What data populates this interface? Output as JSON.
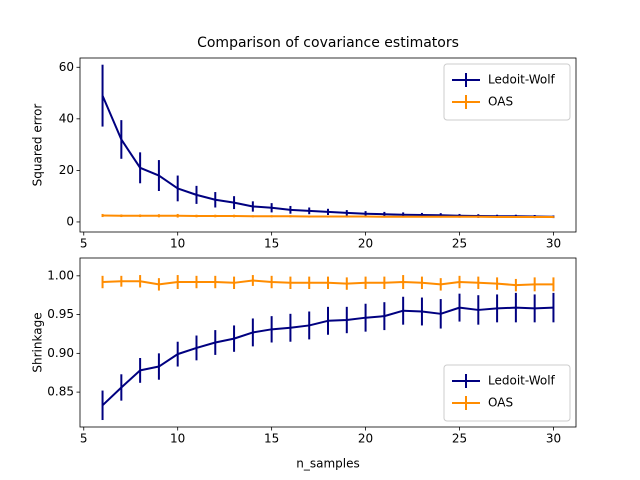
{
  "chart_data": [
    {
      "type": "errorbar_line",
      "title": "Comparison of covariance estimators",
      "ylabel": "Squared error",
      "x": [
        6,
        7,
        8,
        9,
        10,
        11,
        12,
        13,
        14,
        15,
        16,
        17,
        18,
        19,
        20,
        21,
        22,
        23,
        24,
        25,
        26,
        27,
        28,
        29,
        30
      ],
      "xlim": [
        4.8,
        31.2
      ],
      "xticks": [
        5,
        10,
        15,
        20,
        25,
        30
      ],
      "ylim": [
        -3.9,
        63.6
      ],
      "yticks": [
        0,
        20,
        40,
        60
      ],
      "legend": "upper right",
      "series": [
        {
          "name": "Ledoit-Wolf",
          "color": "#000080",
          "values": [
            49,
            32,
            21,
            18,
            13,
            10.5,
            8.6,
            7.5,
            6,
            5.5,
            4.7,
            4.3,
            3.9,
            3.5,
            3.2,
            3.0,
            2.8,
            2.7,
            2.6,
            2.4,
            2.3,
            2.2,
            2.2,
            2.1,
            2.0
          ],
          "errors": [
            12,
            7.5,
            6,
            6,
            5,
            3.5,
            3,
            2.5,
            2,
            1.8,
            1.5,
            1.3,
            1.2,
            1.1,
            1,
            0.9,
            0.9,
            0.8,
            0.8,
            0.7,
            0.7,
            0.6,
            0.6,
            0.6,
            0.5
          ]
        },
        {
          "name": "OAS",
          "color": "#ff8c00",
          "values": [
            2.5,
            2.4,
            2.4,
            2.4,
            2.4,
            2.3,
            2.3,
            2.3,
            2.2,
            2.2,
            2.2,
            2.1,
            2.1,
            2.1,
            2.1,
            2.0,
            2.0,
            2.0,
            2.0,
            2.0,
            2.0,
            1.9,
            1.9,
            1.9,
            1.9
          ],
          "errors": [
            0.6,
            0.5,
            0.5,
            0.6,
            0.7,
            0.5,
            0.5,
            0.5,
            0.4,
            0.4,
            0.4,
            0.4,
            0.4,
            0.4,
            0.4,
            0.3,
            0.3,
            0.3,
            0.3,
            0.3,
            0.3,
            0.3,
            0.3,
            0.3,
            0.3
          ]
        }
      ]
    },
    {
      "type": "errorbar_line",
      "ylabel": "Shrinkage",
      "xlabel": "n_samples",
      "x": [
        6,
        7,
        8,
        9,
        10,
        11,
        12,
        13,
        14,
        15,
        16,
        17,
        18,
        19,
        20,
        21,
        22,
        23,
        24,
        25,
        26,
        27,
        28,
        29,
        30
      ],
      "xlim": [
        4.8,
        31.2
      ],
      "xticks": [
        5,
        10,
        15,
        20,
        25,
        30
      ],
      "ylim": [
        0.805,
        1.023
      ],
      "yticks": [
        {
          "value": 0.85,
          "label": "0.85"
        },
        {
          "value": 0.9,
          "label": "0.90"
        },
        {
          "value": 0.95,
          "label": "0.95"
        },
        {
          "value": 1,
          "label": "1.00"
        }
      ],
      "legend": "lower right",
      "series": [
        {
          "name": "Ledoit-Wolf",
          "color": "#000080",
          "values": [
            0.833,
            0.856,
            0.878,
            0.883,
            0.899,
            0.907,
            0.914,
            0.919,
            0.927,
            0.931,
            0.933,
            0.936,
            0.942,
            0.943,
            0.946,
            0.948,
            0.955,
            0.954,
            0.951,
            0.959,
            0.956,
            0.958,
            0.959,
            0.958,
            0.959
          ],
          "errors": [
            0.019,
            0.017,
            0.016,
            0.017,
            0.016,
            0.016,
            0.016,
            0.017,
            0.018,
            0.017,
            0.018,
            0.018,
            0.018,
            0.017,
            0.018,
            0.018,
            0.018,
            0.018,
            0.019,
            0.018,
            0.019,
            0.018,
            0.019,
            0.018,
            0.019
          ]
        },
        {
          "name": "OAS",
          "color": "#ff8c00",
          "values": [
            0.992,
            0.993,
            0.993,
            0.989,
            0.992,
            0.992,
            0.992,
            0.991,
            0.994,
            0.992,
            0.991,
            0.991,
            0.991,
            0.99,
            0.991,
            0.991,
            0.992,
            0.991,
            0.989,
            0.992,
            0.991,
            0.99,
            0.988,
            0.989,
            0.989
          ],
          "errors": [
            0.008,
            0.007,
            0.008,
            0.008,
            0.009,
            0.008,
            0.008,
            0.008,
            0.007,
            0.008,
            0.008,
            0.008,
            0.008,
            0.008,
            0.008,
            0.008,
            0.009,
            0.008,
            0.008,
            0.008,
            0.008,
            0.008,
            0.008,
            0.009,
            0.009
          ]
        }
      ]
    }
  ]
}
